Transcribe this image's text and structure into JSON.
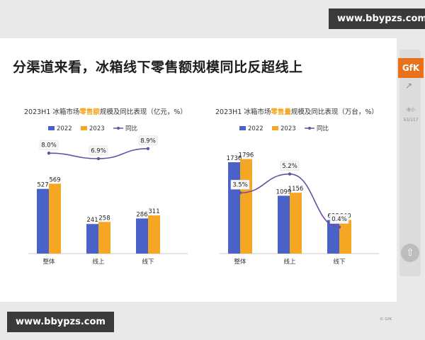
{
  "watermark": {
    "text": "www.bbypzs.com"
  },
  "slide_title": "分渠道来看，冰箱线下零售额规模同比反超线上",
  "side_panel": {
    "logo": "GfK",
    "share_icon": "share-icon",
    "collect_label": "收小",
    "page_indicator": "53/117",
    "scroll_top_icon": "arrow-up-icon"
  },
  "source": "© GfK",
  "colors": {
    "y2022": "#4a62c8",
    "y2023": "#f5a623",
    "yoy": "#6b4fa0"
  },
  "chart_data": [
    {
      "type": "bar",
      "title_parts": [
        "2023H1 冰箱市场",
        "零售额",
        "规模及同比表现（亿元，%）"
      ],
      "categories": [
        "整体",
        "线上",
        "线下"
      ],
      "series": [
        {
          "name": "2022",
          "values": [
            527,
            241,
            286
          ],
          "labels": [
            "527",
            "241",
            "286"
          ]
        },
        {
          "name": "2023",
          "values": [
            569,
            258,
            311
          ],
          "labels": [
            "569",
            "258",
            "311"
          ]
        }
      ],
      "line_series": {
        "name": "同比",
        "values": [
          8.0,
          6.9,
          8.9
        ],
        "labels": [
          "8.0%",
          "6.9%",
          "8.9%"
        ]
      },
      "ylim": [
        0,
        900
      ],
      "yoy_lim": [
        -12,
        10
      ],
      "legend_position": "top-left",
      "grid": false
    },
    {
      "type": "bar",
      "title_parts": [
        "2023H1 冰箱市场",
        "零售量",
        "规模及同比表现（万台，%）"
      ],
      "categories": [
        "整体",
        "线上",
        "线下"
      ],
      "series": [
        {
          "name": "2022",
          "values": [
            1736,
            1099,
            638
          ],
          "labels": [
            "1736",
            "1099",
            "638"
          ]
        },
        {
          "name": "2023",
          "values": [
            1796,
            1156,
            640
          ],
          "labels": [
            "1796",
            "1156",
            "640"
          ]
        }
      ],
      "line_series": {
        "name": "同比",
        "values": [
          3.5,
          5.2,
          0.4
        ],
        "labels": [
          "3.5%",
          "5.2%",
          "0.4%"
        ]
      },
      "ylim": [
        0,
        2100
      ],
      "yoy_lim": [
        -2,
        8
      ],
      "legend_position": "top-left",
      "grid": false
    }
  ]
}
